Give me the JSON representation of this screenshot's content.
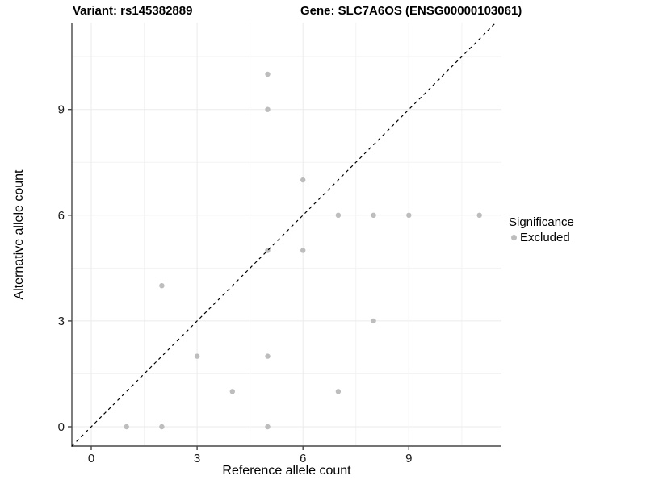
{
  "header": {
    "variant_title": "Variant: rs145382889",
    "gene_title": "Gene: SLC7A6OS (ENSG00000103061)"
  },
  "chart_data": {
    "type": "scatter",
    "title_left": "Variant: rs145382889",
    "title_right": "Gene: SLC7A6OS (ENSG00000103061)",
    "xlabel": "Reference allele count",
    "ylabel": "Alternative allele count",
    "x_ticks": [
      0,
      3,
      6,
      9
    ],
    "y_ticks": [
      0,
      3,
      6,
      9
    ],
    "x_minor_gridlines": [
      1.5,
      4.5,
      7.5,
      10.5
    ],
    "y_minor_gridlines": [
      1.5,
      4.5,
      7.5,
      10.5
    ],
    "xlim": [
      -0.55,
      11.62
    ],
    "ylim": [
      -0.55,
      11.46
    ],
    "grid": true,
    "points": [
      {
        "x": 1,
        "y": 0,
        "significance": "Excluded"
      },
      {
        "x": 2,
        "y": 0,
        "significance": "Excluded"
      },
      {
        "x": 5,
        "y": 0,
        "significance": "Excluded"
      },
      {
        "x": 4,
        "y": 1,
        "significance": "Excluded"
      },
      {
        "x": 7,
        "y": 1,
        "significance": "Excluded"
      },
      {
        "x": 3,
        "y": 2,
        "significance": "Excluded"
      },
      {
        "x": 5,
        "y": 2,
        "significance": "Excluded"
      },
      {
        "x": 8,
        "y": 3,
        "significance": "Excluded"
      },
      {
        "x": 2,
        "y": 4,
        "significance": "Excluded"
      },
      {
        "x": 5,
        "y": 5,
        "significance": "Excluded"
      },
      {
        "x": 6,
        "y": 5,
        "significance": "Excluded"
      },
      {
        "x": 7,
        "y": 6,
        "significance": "Excluded"
      },
      {
        "x": 8,
        "y": 6,
        "significance": "Excluded"
      },
      {
        "x": 9,
        "y": 6,
        "significance": "Excluded"
      },
      {
        "x": 11,
        "y": 6,
        "significance": "Excluded"
      },
      {
        "x": 6,
        "y": 7,
        "significance": "Excluded"
      },
      {
        "x": 5,
        "y": 9,
        "significance": "Excluded"
      },
      {
        "x": 5,
        "y": 10,
        "significance": "Excluded"
      }
    ],
    "identity_line": {
      "equation": "y = x",
      "style": "dashed",
      "color": "#000000"
    },
    "colors": {
      "point": "#bdbdbd",
      "major_grid": "#ebebeb",
      "minor_grid": "#f3f3f3",
      "axis_line": "#474747",
      "tick_text": "#1a1a1a"
    },
    "legend": {
      "position": "right",
      "title": "Significance",
      "items": [
        {
          "label": "Excluded",
          "color": "#bdbdbd"
        }
      ]
    }
  }
}
